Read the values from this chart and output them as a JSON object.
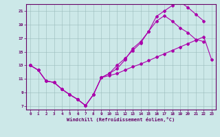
{
  "xlabel": "Windchill (Refroidissement éolien,°C)",
  "bg_color": "#cce8e8",
  "line_color": "#aa00aa",
  "xlim": [
    -0.5,
    23.5
  ],
  "ylim": [
    6.5,
    22.0
  ],
  "yticks": [
    7,
    9,
    11,
    13,
    15,
    17,
    19,
    21
  ],
  "xticks": [
    0,
    1,
    2,
    3,
    4,
    5,
    6,
    7,
    8,
    9,
    10,
    11,
    12,
    13,
    14,
    15,
    16,
    17,
    18,
    19,
    20,
    21,
    22,
    23
  ],
  "upper_x": [
    0,
    1,
    2,
    3,
    4,
    5,
    6,
    7,
    8,
    9,
    10,
    11,
    12,
    13,
    14,
    15,
    16,
    17,
    18,
    19,
    20,
    21,
    22
  ],
  "upper_y": [
    13.0,
    12.3,
    10.7,
    10.5,
    9.5,
    8.7,
    8.0,
    7.1,
    8.7,
    11.2,
    11.8,
    13.0,
    14.0,
    15.2,
    16.3,
    18.0,
    20.2,
    21.0,
    21.8,
    22.3,
    21.5,
    20.5,
    19.5
  ],
  "mid_x": [
    0,
    1,
    2,
    3,
    4,
    5,
    6,
    7,
    8,
    9,
    10,
    11,
    12,
    13,
    14,
    15,
    16,
    17,
    18,
    19,
    20,
    21,
    22
  ],
  "mid_y": [
    13.0,
    12.3,
    10.7,
    10.5,
    9.5,
    8.7,
    8.0,
    7.1,
    8.7,
    11.2,
    11.8,
    12.5,
    13.8,
    15.5,
    16.5,
    18.0,
    19.5,
    20.3,
    19.5,
    18.5,
    17.8,
    16.8,
    16.5
  ],
  "low_x": [
    0,
    1,
    2,
    3,
    4,
    5,
    6,
    7,
    8,
    9,
    10,
    11,
    12,
    13,
    14,
    15,
    16,
    17,
    18,
    19,
    20,
    21,
    22,
    23
  ],
  "low_y": [
    13.0,
    12.3,
    10.7,
    10.5,
    9.5,
    8.7,
    8.0,
    7.1,
    8.7,
    11.2,
    11.5,
    11.8,
    12.3,
    12.8,
    13.2,
    13.7,
    14.2,
    14.7,
    15.2,
    15.7,
    16.2,
    16.7,
    17.2,
    13.8
  ]
}
